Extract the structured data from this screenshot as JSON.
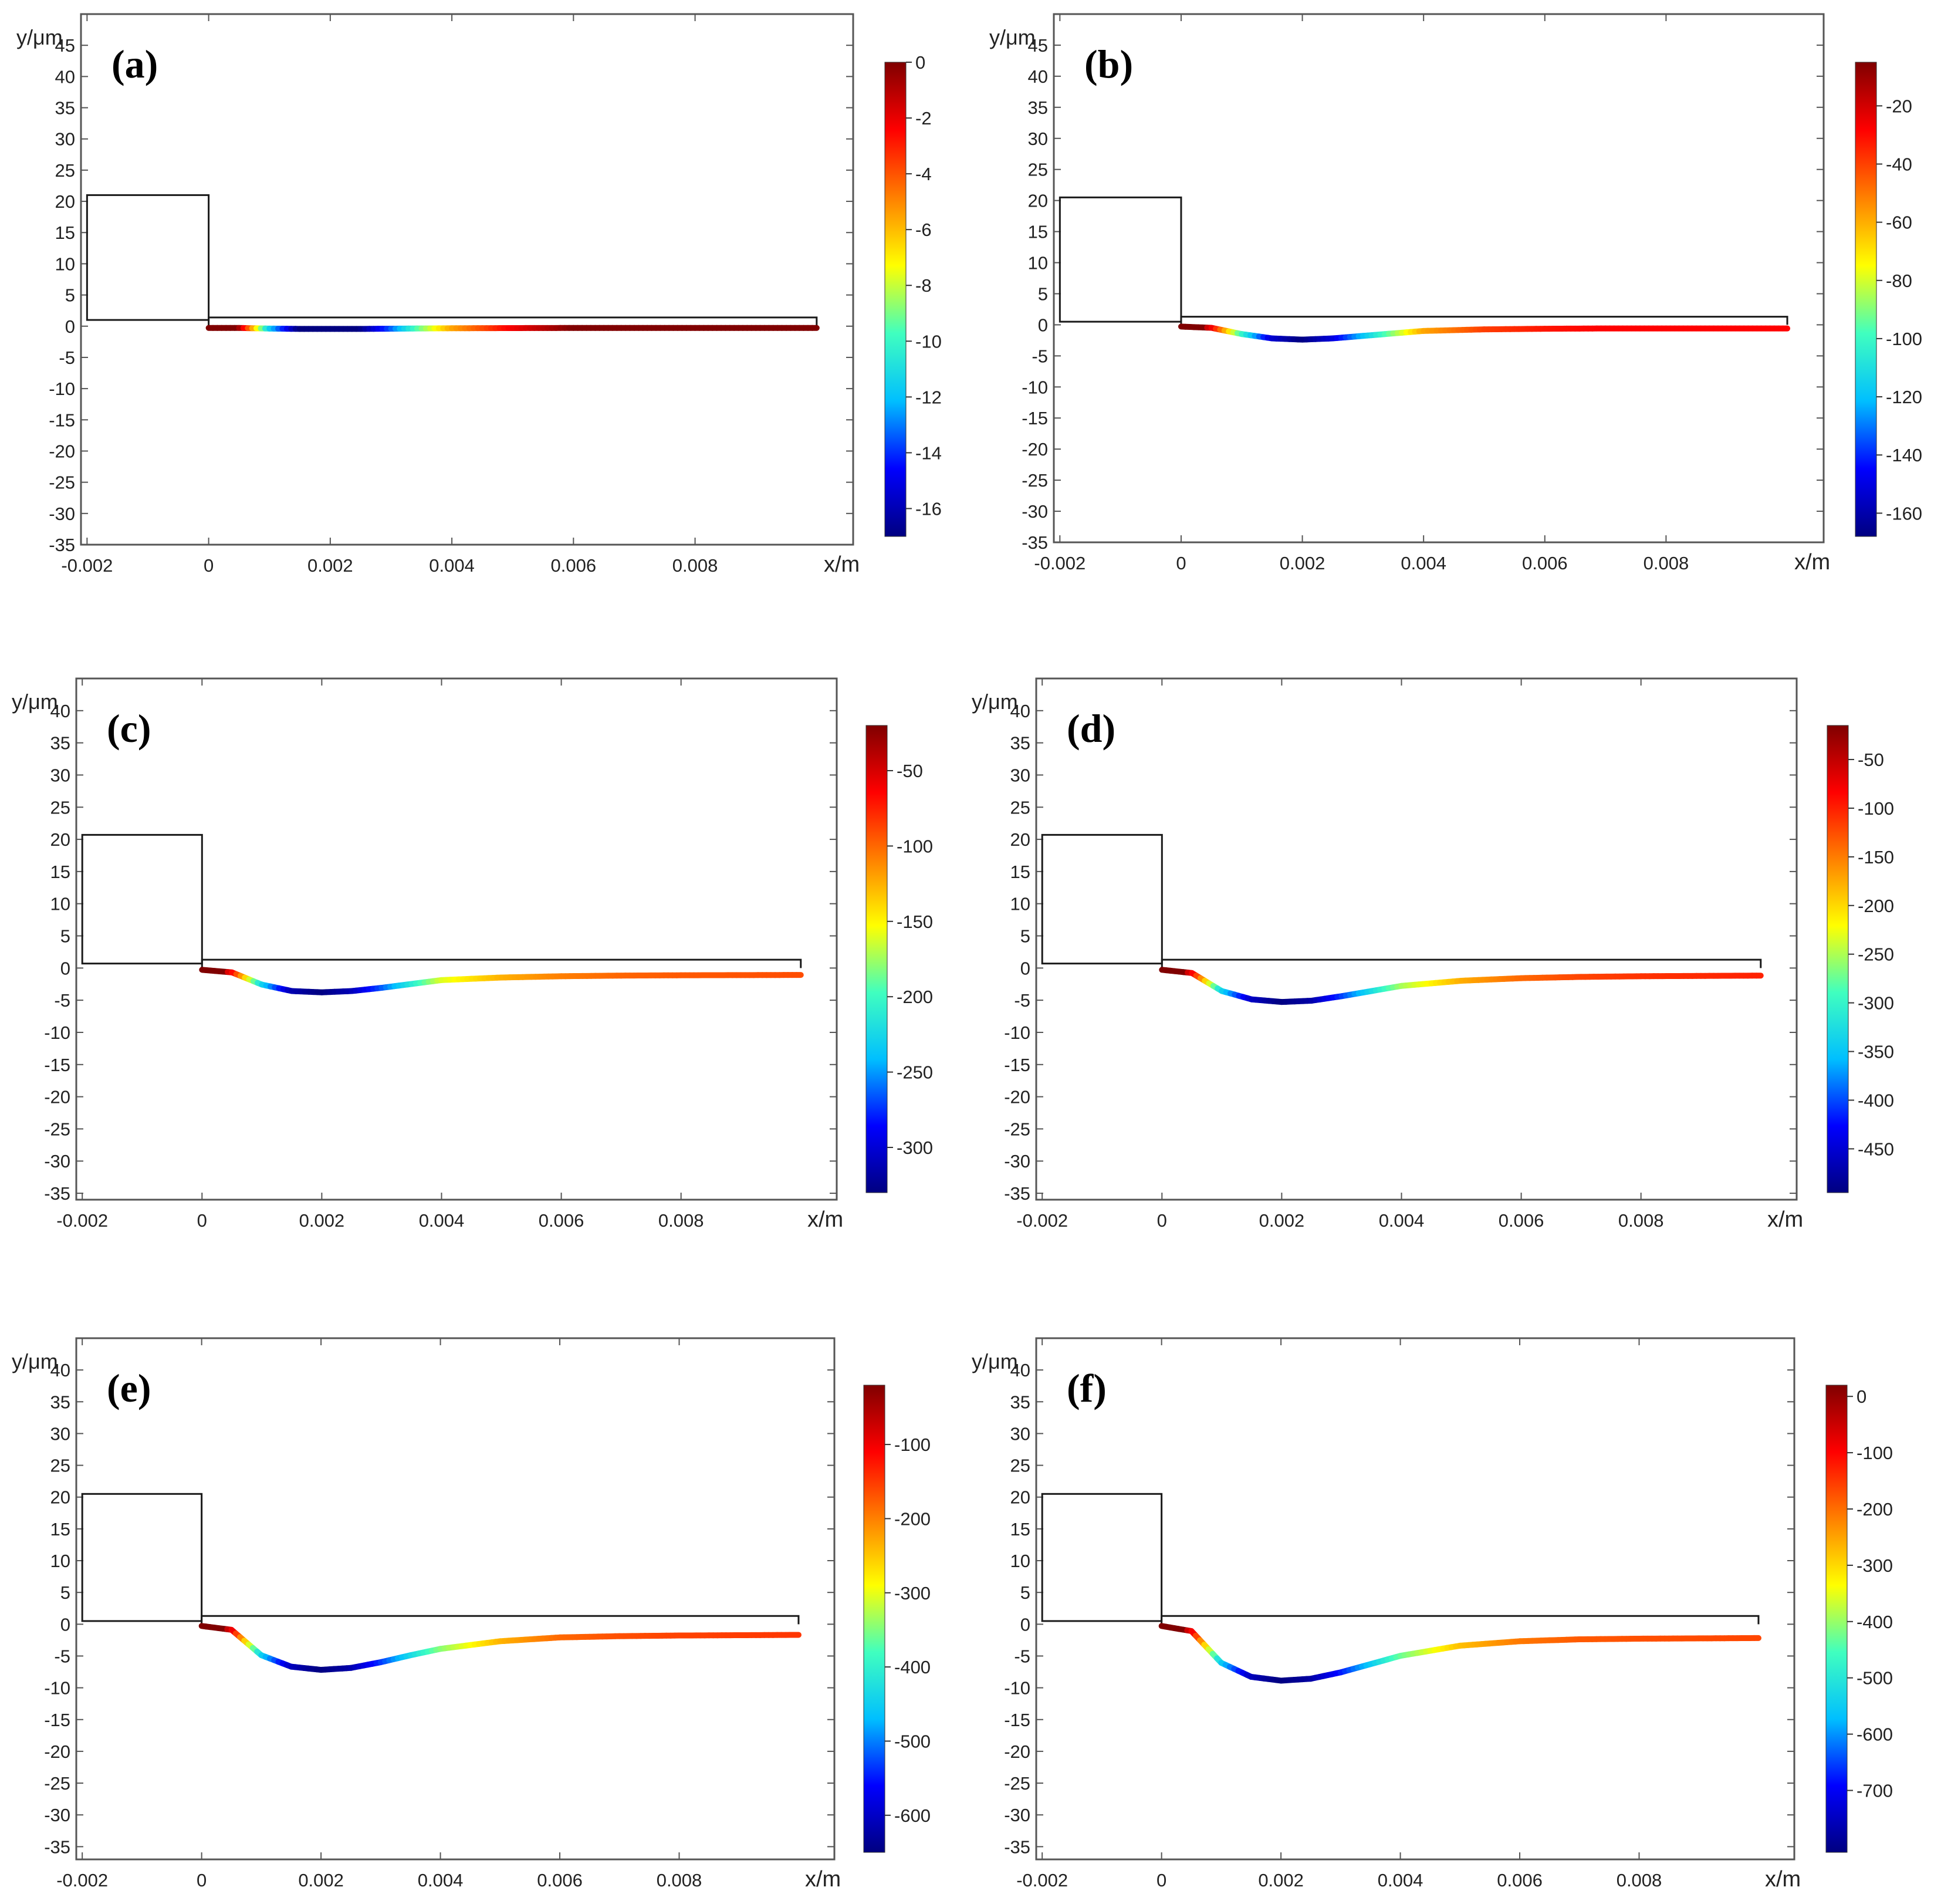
{
  "figure": {
    "panels": 6,
    "colors": {
      "frame": "#555555",
      "outline": "#1a1a1a",
      "tick_text": "#222222",
      "colormap": [
        "#000080",
        "#0000ff",
        "#00bfff",
        "#40ffbf",
        "#ffff00",
        "#ff8000",
        "#ff0000",
        "#800000"
      ]
    }
  },
  "chart_data": [
    {
      "type": "line",
      "panel_label": "(a)",
      "xlabel": "x/m",
      "ylabel": "y/μm",
      "xlim": [
        -0.0021,
        0.0106
      ],
      "ylim": [
        -35,
        50
      ],
      "x_ticks": [
        -0.002,
        0,
        0.002,
        0.004,
        0.006,
        0.008
      ],
      "x_tick_labels": [
        "-0.002",
        "0",
        "0.002",
        "0.004",
        "0.006",
        "0.008"
      ],
      "y_ticks": [
        45,
        40,
        35,
        30,
        25,
        20,
        15,
        10,
        5,
        0,
        -5,
        -10,
        -15,
        -20,
        -25,
        -30,
        -35
      ],
      "outline": {
        "block": {
          "x": [
            -0.002,
            0
          ],
          "y": [
            1,
            21
          ]
        },
        "plate": {
          "x": [
            0,
            0.01
          ],
          "y": [
            0,
            1.4
          ]
        }
      },
      "deflection": {
        "x": [
          0,
          0.0005,
          0.001,
          0.0015,
          0.002,
          0.0025,
          0.003,
          0.0035,
          0.004,
          0.005,
          0.006,
          0.007,
          0.008,
          0.01
        ],
        "y": [
          0,
          0,
          -0.1,
          -0.15,
          -0.15,
          -0.15,
          -0.12,
          -0.08,
          -0.05,
          -0.02,
          0,
          0,
          0,
          0
        ]
      },
      "colorbar": {
        "range": [
          -17,
          0
        ],
        "ticks": [
          0,
          -2,
          -4,
          -6,
          -8,
          -10,
          -12,
          -14,
          -16
        ],
        "tick_labels": [
          "0",
          "-2",
          "-4",
          "-6",
          "-8",
          "-10",
          "-12",
          "-14",
          "-16"
        ]
      }
    },
    {
      "type": "line",
      "panel_label": "(b)",
      "xlabel": "x/m",
      "ylabel": "y/μm",
      "xlim": [
        -0.0021,
        0.0106
      ],
      "ylim": [
        -35,
        50
      ],
      "x_ticks": [
        -0.002,
        0,
        0.002,
        0.004,
        0.006,
        0.008
      ],
      "x_tick_labels": [
        "-0.002",
        "0",
        "0.002",
        "0.004",
        "0.006",
        "0.008"
      ],
      "y_ticks": [
        45,
        40,
        35,
        30,
        25,
        20,
        15,
        10,
        5,
        0,
        -5,
        -10,
        -15,
        -20,
        -25,
        -30,
        -35
      ],
      "outline": {
        "block": {
          "x": [
            -0.002,
            0
          ],
          "y": [
            0.5,
            20.5
          ]
        },
        "plate": {
          "x": [
            0,
            0.01
          ],
          "y": [
            0,
            1.3
          ]
        }
      },
      "deflection": {
        "x": [
          0,
          0.0005,
          0.001,
          0.0015,
          0.002,
          0.0025,
          0.003,
          0.0035,
          0.004,
          0.005,
          0.006,
          0.007,
          0.008,
          0.01
        ],
        "y": [
          0,
          -0.2,
          -1.2,
          -1.9,
          -2.1,
          -1.9,
          -1.5,
          -1.1,
          -0.7,
          -0.45,
          -0.35,
          -0.3,
          -0.3,
          -0.3
        ]
      },
      "colorbar": {
        "range": [
          -168,
          -5
        ],
        "ticks": [
          -20,
          -40,
          -60,
          -80,
          -100,
          -120,
          -140,
          -160
        ],
        "tick_labels": [
          "-20",
          "-40",
          "-60",
          "-80",
          "-100",
          "-120",
          "-140",
          "-160"
        ]
      }
    },
    {
      "type": "line",
      "panel_label": "(c)",
      "xlabel": "x/m",
      "ylabel": "y/μm",
      "xlim": [
        -0.0021,
        0.0106
      ],
      "ylim": [
        -36,
        45
      ],
      "x_ticks": [
        -0.002,
        0,
        0.002,
        0.004,
        0.006,
        0.008
      ],
      "x_tick_labels": [
        "-0.002",
        "0",
        "0.002",
        "0.004",
        "0.006",
        "0.008"
      ],
      "y_ticks": [
        40,
        35,
        30,
        25,
        20,
        15,
        10,
        5,
        0,
        -5,
        -10,
        -15,
        -20,
        -25,
        -30,
        -35
      ],
      "outline": {
        "block": {
          "x": [
            -0.002,
            0
          ],
          "y": [
            0.7,
            20.7
          ]
        },
        "plate": {
          "x": [
            0,
            0.01
          ],
          "y": [
            0,
            1.3
          ]
        }
      },
      "deflection": {
        "x": [
          0,
          0.0005,
          0.001,
          0.0015,
          0.002,
          0.0025,
          0.003,
          0.0035,
          0.004,
          0.005,
          0.006,
          0.007,
          0.008,
          0.01
        ],
        "y": [
          0,
          -0.4,
          -2.3,
          -3.3,
          -3.5,
          -3.3,
          -2.8,
          -2.2,
          -1.6,
          -1.2,
          -1.0,
          -0.9,
          -0.85,
          -0.8
        ]
      },
      "colorbar": {
        "range": [
          -330,
          -20
        ],
        "ticks": [
          -50,
          -100,
          -150,
          -200,
          -250,
          -300
        ],
        "tick_labels": [
          "-50",
          "-100",
          "-150",
          "-200",
          "-250",
          "-300"
        ]
      }
    },
    {
      "type": "line",
      "panel_label": "(d)",
      "xlabel": "x/m",
      "ylabel": "y/μm",
      "xlim": [
        -0.0021,
        0.0106
      ],
      "ylim": [
        -36,
        45
      ],
      "x_ticks": [
        -0.002,
        0,
        0.002,
        0.004,
        0.006,
        0.008
      ],
      "x_tick_labels": [
        "-0.002",
        "0",
        "0.002",
        "0.004",
        "0.006",
        "0.008"
      ],
      "y_ticks": [
        40,
        35,
        30,
        25,
        20,
        15,
        10,
        5,
        0,
        -5,
        -10,
        -15,
        -20,
        -25,
        -30,
        -35
      ],
      "outline": {
        "block": {
          "x": [
            -0.002,
            0
          ],
          "y": [
            0.7,
            20.7
          ]
        },
        "plate": {
          "x": [
            0,
            0.01
          ],
          "y": [
            0,
            1.3
          ]
        }
      },
      "deflection": {
        "x": [
          0,
          0.0005,
          0.001,
          0.0015,
          0.002,
          0.0025,
          0.003,
          0.0035,
          0.004,
          0.005,
          0.006,
          0.007,
          0.008,
          0.01
        ],
        "y": [
          0,
          -0.5,
          -3.3,
          -4.6,
          -5.0,
          -4.8,
          -4.1,
          -3.3,
          -2.5,
          -1.7,
          -1.3,
          -1.1,
          -1.0,
          -0.9
        ]
      },
      "colorbar": {
        "range": [
          -495,
          -15
        ],
        "ticks": [
          -50,
          -100,
          -150,
          -200,
          -250,
          -300,
          -350,
          -400,
          -450
        ],
        "tick_labels": [
          "-50",
          "-100",
          "-150",
          "-200",
          "-250",
          "-300",
          "-350",
          "-400",
          "-450"
        ]
      }
    },
    {
      "type": "line",
      "panel_label": "(e)",
      "xlabel": "x/m",
      "ylabel": "y/μm",
      "xlim": [
        -0.0021,
        0.0106
      ],
      "ylim": [
        -37,
        45
      ],
      "x_ticks": [
        -0.002,
        0,
        0.002,
        0.004,
        0.006,
        0.008
      ],
      "x_tick_labels": [
        "-0.002",
        "0",
        "0.002",
        "0.004",
        "0.006",
        "0.008"
      ],
      "y_ticks": [
        40,
        35,
        30,
        25,
        20,
        15,
        10,
        5,
        0,
        -5,
        -10,
        -15,
        -20,
        -25,
        -30,
        -35
      ],
      "outline": {
        "block": {
          "x": [
            -0.002,
            0
          ],
          "y": [
            0.5,
            20.5
          ]
        },
        "plate": {
          "x": [
            0,
            0.01
          ],
          "y": [
            0,
            1.3
          ]
        }
      },
      "deflection": {
        "x": [
          0,
          0.0005,
          0.001,
          0.0015,
          0.002,
          0.0025,
          0.003,
          0.0035,
          0.004,
          0.005,
          0.006,
          0.007,
          0.008,
          0.01
        ],
        "y": [
          0,
          -0.6,
          -4.6,
          -6.4,
          -6.9,
          -6.6,
          -5.7,
          -4.6,
          -3.6,
          -2.4,
          -1.8,
          -1.6,
          -1.5,
          -1.4
        ]
      },
      "colorbar": {
        "range": [
          -650,
          -20
        ],
        "ticks": [
          -100,
          -200,
          -300,
          -400,
          -500,
          -600
        ],
        "tick_labels": [
          "-100",
          "-200",
          "-300",
          "-400",
          "-500",
          "-600"
        ]
      }
    },
    {
      "type": "line",
      "panel_label": "(f)",
      "xlabel": "x/m",
      "ylabel": "y/μm",
      "xlim": [
        -0.0021,
        0.0106
      ],
      "ylim": [
        -37,
        45
      ],
      "x_ticks": [
        -0.002,
        0,
        0.002,
        0.004,
        0.006,
        0.008
      ],
      "x_tick_labels": [
        "-0.002",
        "0",
        "0.002",
        "0.004",
        "0.006",
        "0.008"
      ],
      "y_ticks": [
        40,
        35,
        30,
        25,
        20,
        15,
        10,
        5,
        0,
        -5,
        -10,
        -15,
        -20,
        -25,
        -30,
        -35
      ],
      "outline": {
        "block": {
          "x": [
            -0.002,
            0
          ],
          "y": [
            0.5,
            20.5
          ]
        },
        "plate": {
          "x": [
            0,
            0.01
          ],
          "y": [
            0,
            1.3
          ]
        }
      },
      "deflection": {
        "x": [
          0,
          0.0005,
          0.001,
          0.0015,
          0.002,
          0.0025,
          0.003,
          0.0035,
          0.004,
          0.005,
          0.006,
          0.007,
          0.008,
          0.01
        ],
        "y": [
          0,
          -0.8,
          -5.8,
          -8.0,
          -8.6,
          -8.3,
          -7.3,
          -6.0,
          -4.7,
          -3.1,
          -2.4,
          -2.1,
          -2.0,
          -1.9
        ]
      },
      "colorbar": {
        "range": [
          -810,
          20
        ],
        "ticks": [
          0,
          -100,
          -200,
          -300,
          -400,
          -500,
          -600,
          -700
        ],
        "tick_labels": [
          "0",
          "-100",
          "-200",
          "-300",
          "-400",
          "-500",
          "-600",
          "-700"
        ]
      }
    }
  ]
}
